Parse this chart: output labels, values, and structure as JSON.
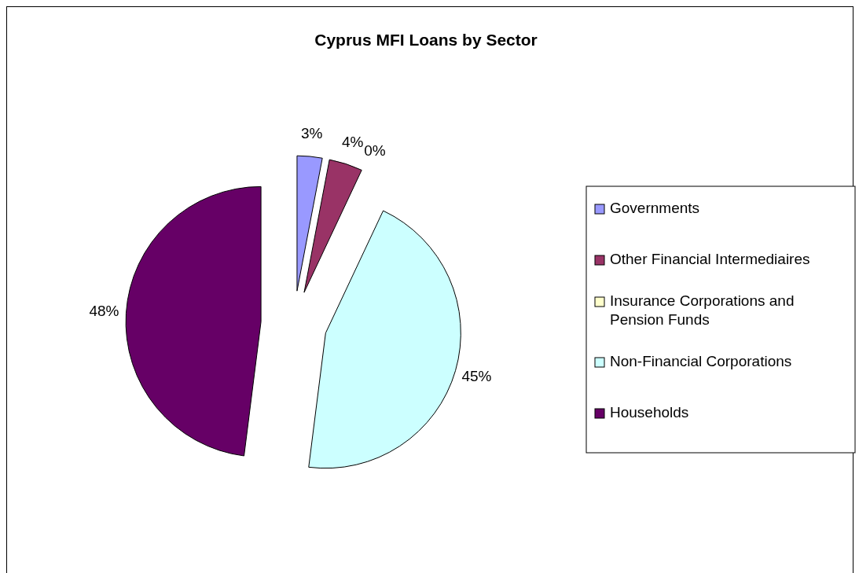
{
  "chart_data": {
    "type": "pie",
    "title": "Cyprus MFI Loans by Sector",
    "categories": [
      "Governments",
      "Other Financial Intermediaires",
      "Insurance Corporations and Pension Funds",
      "Non-Financial Corporations",
      "Households"
    ],
    "values": [
      3,
      4,
      0,
      45,
      48
    ],
    "colors": [
      "#9999ff",
      "#993366",
      "#ffffcc",
      "#ccffff",
      "#660066"
    ],
    "value_labels": [
      "3%",
      "4%",
      "0%",
      "45%",
      "48%"
    ],
    "legend": "right"
  }
}
